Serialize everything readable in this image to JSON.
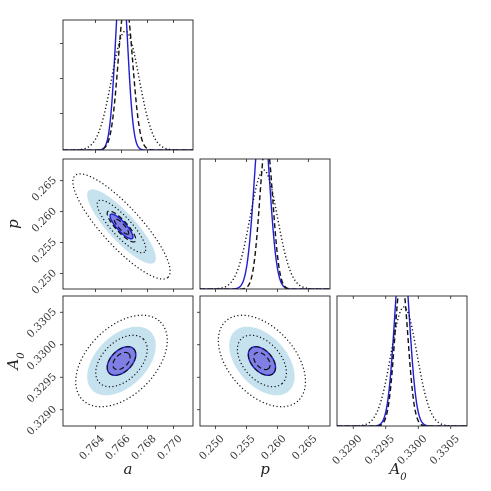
{
  "chart_data": {
    "type": "corner",
    "parameters": [
      {
        "key": "a",
        "label": "a",
        "range": [
          0.7615,
          0.7715
        ],
        "ticks": [
          "0.764",
          "0.766",
          "0.768",
          "0.770"
        ],
        "tick_values": [
          0.764,
          0.766,
          0.768,
          0.77
        ]
      },
      {
        "key": "p",
        "label": "p",
        "range": [
          0.2475,
          0.2685
        ],
        "ticks": [
          "0.250",
          "0.255",
          "0.260",
          "0.265"
        ],
        "tick_values": [
          0.25,
          0.255,
          0.26,
          0.265
        ]
      },
      {
        "key": "A0",
        "label": "A",
        "label_sub": "0",
        "range": [
          0.32875,
          0.33075
        ],
        "ticks": [
          "0.3290",
          "0.3295",
          "0.3300",
          "0.3305"
        ],
        "tick_values": [
          0.329,
          0.3295,
          0.33,
          0.3305
        ]
      }
    ],
    "marginals": [
      {
        "param": "a",
        "curves": [
          {
            "style": "solid",
            "color": "#1f1fd0",
            "center": 0.766,
            "sigma": 0.00045
          },
          {
            "style": "dashed",
            "color": "#111111",
            "center": 0.7663,
            "sigma": 0.00055
          },
          {
            "style": "dotted",
            "color": "#111111",
            "center": 0.7663,
            "sigma": 0.00105
          }
        ]
      },
      {
        "param": "p",
        "curves": [
          {
            "style": "solid",
            "color": "#1f1fd0",
            "center": 0.2575,
            "sigma": 0.0012
          },
          {
            "style": "dashed",
            "color": "#111111",
            "center": 0.2582,
            "sigma": 0.00105
          },
          {
            "style": "dotted",
            "color": "#111111",
            "center": 0.2578,
            "sigma": 0.0022
          }
        ]
      },
      {
        "param": "A0",
        "curves": [
          {
            "style": "solid",
            "color": "#1f1fd0",
            "center": 0.32975,
            "sigma": 0.00011
          },
          {
            "style": "dashed",
            "color": "#111111",
            "center": 0.32974,
            "sigma": 0.0001
          },
          {
            "style": "dotted",
            "color": "#111111",
            "center": 0.32978,
            "sigma": 0.0002
          }
        ]
      }
    ],
    "joint": [
      {
        "x": "a",
        "y": "p",
        "center": [
          0.766,
          0.2576
        ],
        "sigma": [
          0.0011,
          0.0025
        ],
        "rho": -0.85,
        "contours": [
          {
            "style": "fill",
            "color": "#c6e2ee",
            "level": 2.4
          },
          {
            "style": "fill",
            "color": "#7f7fe6",
            "level": 0.8
          },
          {
            "style": "solid",
            "color": "#1f1fd0",
            "level": 0.8
          },
          {
            "style": "dashed",
            "color": "#111111",
            "level": 0.5
          },
          {
            "style": "dashed",
            "color": "#111111",
            "level": 1.0
          },
          {
            "style": "dotted",
            "color": "#111111",
            "level": 1.7
          },
          {
            "style": "dotted",
            "color": "#111111",
            "level": 3.4
          }
        ]
      },
      {
        "x": "a",
        "y": "A0",
        "center": [
          0.766,
          0.32975
        ],
        "sigma": [
          0.0011,
          0.00022
        ],
        "rho": 0.45,
        "contours": [
          {
            "style": "fill",
            "color": "#c6e2ee",
            "level": 2.4
          },
          {
            "style": "fill",
            "color": "#7f7fe6",
            "level": 1.0
          },
          {
            "style": "solid",
            "color": "#1f1fd0",
            "level": 1.0
          },
          {
            "style": "dashed",
            "color": "#111111",
            "level": 0.6
          },
          {
            "style": "dashed",
            "color": "#111111",
            "level": 1.0
          },
          {
            "style": "dotted",
            "color": "#111111",
            "level": 1.8
          },
          {
            "style": "dotted",
            "color": "#111111",
            "level": 3.2
          }
        ]
      },
      {
        "x": "p",
        "y": "A0",
        "center": [
          0.2575,
          0.32975
        ],
        "sigma": [
          0.0022,
          0.00022
        ],
        "rho": -0.45,
        "contours": [
          {
            "style": "fill",
            "color": "#c6e2ee",
            "level": 2.4
          },
          {
            "style": "fill",
            "color": "#7f7fe6",
            "level": 1.0
          },
          {
            "style": "solid",
            "color": "#1f1fd0",
            "level": 1.0
          },
          {
            "style": "dashed",
            "color": "#111111",
            "level": 0.6
          },
          {
            "style": "dashed",
            "color": "#111111",
            "level": 1.0
          },
          {
            "style": "dotted",
            "color": "#111111",
            "level": 1.8
          },
          {
            "style": "dotted",
            "color": "#111111",
            "level": 3.2
          }
        ]
      }
    ]
  }
}
